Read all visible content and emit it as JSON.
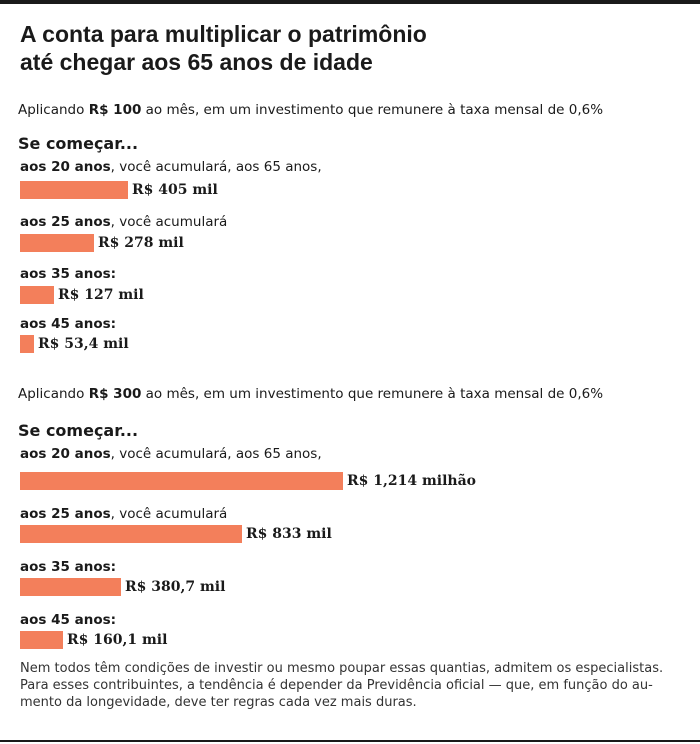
{
  "title_lines": [
    "A conta para multiplicar o patrimônio",
    "até chegar aos 65 anos de idade"
  ],
  "chart_data": [
    {
      "type": "bar",
      "intro": {
        "prefix": "Aplicando ",
        "amount": "R$ 100",
        "suffix": " ao mês, em um investimento que remunere  à taxa mensal de 0,6%"
      },
      "heading": "Se começar...",
      "bars": [
        {
          "age": "aos 20 anos",
          "note": ", você acumulará, aos 65 anos,",
          "value": 405,
          "label": "R$ 405 mil"
        },
        {
          "age": "aos 25 anos",
          "note": ", você acumulará",
          "value": 278,
          "label": "R$ 278 mil"
        },
        {
          "age": "aos 35 anos:",
          "note": "",
          "value": 127,
          "label": "R$ 127 mil"
        },
        {
          "age": "aos 45 anos:",
          "note": "",
          "value": 53.4,
          "label": "R$ 53,4 mil"
        }
      ]
    },
    {
      "type": "bar",
      "intro": {
        "prefix": "Aplicando ",
        "amount": "R$ 300",
        "suffix": " ao mês, em um investimento que remunere à taxa mensal de 0,6%"
      },
      "heading": "Se começar...",
      "bars": [
        {
          "age": "aos 20 anos",
          "note": ", você acumulará, aos 65 anos,",
          "value": 1214,
          "label": "R$ 1,214 milhão"
        },
        {
          "age": "aos 25 anos",
          "note": ", você acumulará",
          "value": 833,
          "label": "R$ 833 mil"
        },
        {
          "age": "aos 35 anos:",
          "note": "",
          "value": 380.7,
          "label": "R$ 380,7 mil"
        },
        {
          "age": "aos 45 anos:",
          "note": "",
          "value": 160.1,
          "label": "R$ 160,1 mil"
        }
      ]
    }
  ],
  "footnote_lines": [
    "Nem todos têm condições de investir ou mesmo poupar essas quantias, admitem os especialistas.",
    "Para esses contribuintes, a tendência é depender da Previdência oficial — que, em função do au-",
    "mento da longevidade, deve ter regras cada vez mais duras."
  ],
  "colors": {
    "bar": "#f37f5b",
    "text": "#1a1a1a",
    "rule": "#1a1a1a"
  }
}
